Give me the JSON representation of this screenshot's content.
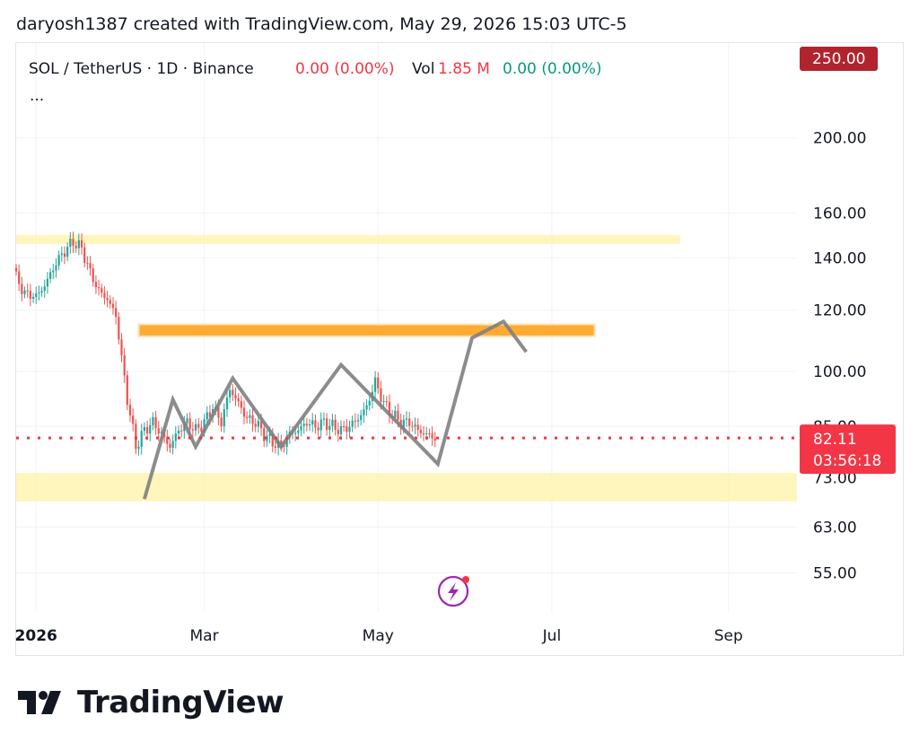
{
  "caption": "daryosh1387 created with TradingView.com, May 29, 2026 15:03 UTC-5",
  "brand": {
    "name": "TradingView"
  },
  "legend": {
    "symbol": "SOL / TetherUS · 1D · Binance",
    "change": "0.00 (0.00%)",
    "vol_label": "Vol",
    "vol_value": "1.85 M",
    "vol_change": "0.00 (0.00%)",
    "more": "..."
  },
  "colors": {
    "up": "#26a69a",
    "down": "#ef5350",
    "zone_light": "#fff3a8",
    "zone_orange": "#ffa726",
    "drawing": "#808080",
    "price_line": "#f23645",
    "top_badge": "#b2242d"
  },
  "chart_data": {
    "type": "candlestick",
    "symbol": "SOL / TetherUS",
    "interval": "1D",
    "exchange": "Binance",
    "y_scale": "log",
    "y_ticks": [
      "200.00",
      "160.00",
      "140.00",
      "120.00",
      "100.00",
      "85.00",
      "73.00",
      "63.00",
      "55.00"
    ],
    "y_tick_values": [
      200,
      160,
      140,
      120,
      100,
      85,
      73,
      63,
      55
    ],
    "top_price_label": "250.00",
    "x_ticks": [
      {
        "label": "2026",
        "date": "2026-01-01",
        "bold": true
      },
      {
        "label": "Mar",
        "date": "2026-03-01",
        "bold": false
      },
      {
        "label": "May",
        "date": "2026-05-01",
        "bold": false
      },
      {
        "label": "Jul",
        "date": "2026-07-01",
        "bold": false
      },
      {
        "label": "Sep",
        "date": "2026-09-01",
        "bold": false
      }
    ],
    "x_range": [
      "2025-12-25",
      "2026-09-25"
    ],
    "y_range": [
      49,
      265
    ],
    "current_price": {
      "value": 82.11,
      "label": "82.11",
      "countdown": "03:56:18"
    },
    "series_close": [
      [
        "2025-12-25",
        132
      ],
      [
        "2025-12-28",
        126
      ],
      [
        "2026-01-01",
        125
      ],
      [
        "2026-01-04",
        129
      ],
      [
        "2026-01-08",
        138
      ],
      [
        "2026-01-11",
        143
      ],
      [
        "2026-01-14",
        147
      ],
      [
        "2026-01-17",
        144
      ],
      [
        "2026-01-20",
        134
      ],
      [
        "2026-01-23",
        127
      ],
      [
        "2026-01-26",
        124
      ],
      [
        "2026-01-29",
        118
      ],
      [
        "2026-01-31",
        104
      ],
      [
        "2026-02-02",
        92
      ],
      [
        "2026-02-05",
        80
      ],
      [
        "2026-02-08",
        84
      ],
      [
        "2026-02-11",
        86
      ],
      [
        "2026-02-14",
        83
      ],
      [
        "2026-02-17",
        80
      ],
      [
        "2026-02-20",
        84
      ],
      [
        "2026-02-23",
        86
      ],
      [
        "2026-02-26",
        84
      ],
      [
        "2026-03-01",
        86
      ],
      [
        "2026-03-04",
        90
      ],
      [
        "2026-03-07",
        86
      ],
      [
        "2026-03-10",
        95
      ],
      [
        "2026-03-13",
        91
      ],
      [
        "2026-03-16",
        87
      ],
      [
        "2026-03-19",
        86
      ],
      [
        "2026-03-22",
        83
      ],
      [
        "2026-03-25",
        81
      ],
      [
        "2026-03-28",
        80
      ],
      [
        "2026-03-31",
        83
      ],
      [
        "2026-04-03",
        84
      ],
      [
        "2026-04-06",
        86
      ],
      [
        "2026-04-09",
        85
      ],
      [
        "2026-04-12",
        86
      ],
      [
        "2026-04-15",
        85
      ],
      [
        "2026-04-18",
        84
      ],
      [
        "2026-04-21",
        85
      ],
      [
        "2026-04-24",
        87
      ],
      [
        "2026-04-27",
        90
      ],
      [
        "2026-04-30",
        97
      ],
      [
        "2026-05-03",
        91
      ],
      [
        "2026-05-06",
        88
      ],
      [
        "2026-05-09",
        86
      ],
      [
        "2026-05-12",
        86
      ],
      [
        "2026-05-15",
        84
      ],
      [
        "2026-05-18",
        83
      ],
      [
        "2026-05-21",
        82.11
      ]
    ],
    "zones": [
      {
        "from": "2025-12-25",
        "to": "2026-08-15",
        "low": 146,
        "high": 150,
        "color": "light"
      },
      {
        "from": "2026-02-06",
        "to": "2026-07-16",
        "low": 111,
        "high": 115,
        "color": "orange"
      },
      {
        "from": "2025-12-25",
        "to": "2026-09-25",
        "low": 68,
        "high": 74,
        "color": "light"
      }
    ],
    "drawing_path": [
      [
        "2026-02-08",
        68.5
      ],
      [
        "2026-02-18",
        92
      ],
      [
        "2026-02-26",
        80
      ],
      [
        "2026-03-11",
        98
      ],
      [
        "2026-03-28",
        80
      ],
      [
        "2026-04-18",
        102
      ],
      [
        "2026-05-22",
        76
      ],
      [
        "2026-06-03",
        110.5
      ],
      [
        "2026-06-14",
        116
      ],
      [
        "2026-06-22",
        106
      ]
    ]
  }
}
